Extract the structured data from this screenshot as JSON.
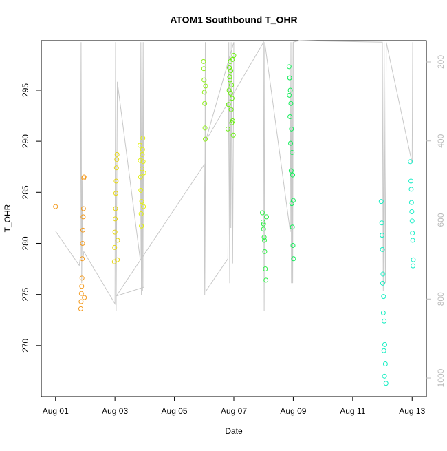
{
  "chart_data": {
    "type": "scatter",
    "title": "ATOM1 Southbound T_OHR",
    "x_label": "Date",
    "y_label": "T_OHR",
    "xlim": [
      0.52,
      13.48
    ],
    "xticks": [
      {
        "value": 1,
        "label": "Aug 01"
      },
      {
        "value": 3,
        "label": "Aug 03"
      },
      {
        "value": 5,
        "label": "Aug 05"
      },
      {
        "value": 7,
        "label": "Aug 07"
      },
      {
        "value": 9,
        "label": "Aug 09"
      },
      {
        "value": 11,
        "label": "Aug 11"
      },
      {
        "value": 13,
        "label": "Aug 13"
      }
    ],
    "ylim": [
      265,
      299.85
    ],
    "yticks": [
      270,
      275,
      280,
      285,
      290,
      295
    ],
    "y2lim": [
      1047,
      146
    ],
    "y2ticks": [
      200,
      400,
      600,
      800,
      1000
    ],
    "series": [
      {
        "color": "#f39a1e",
        "x": [
          1.0,
          1.85,
          1.86,
          1.87,
          1.88,
          1.89,
          1.9,
          1.91,
          1.92,
          1.93,
          1.94,
          1.95,
          1.96,
          1.97
        ],
        "values": [
          283.6,
          273.6,
          274.3,
          275.1,
          275.8,
          276.6,
          278.5,
          280.0,
          281.3,
          282.6,
          283.4,
          286.4,
          286.5,
          274.7
        ]
      },
      {
        "color": "#e6d614",
        "x": [
          2.98,
          2.99,
          3.0,
          3.01,
          3.02,
          3.03,
          3.04,
          3.05,
          3.06,
          3.07,
          3.08,
          3.09
        ],
        "values": [
          278.2,
          279.6,
          281.1,
          282.4,
          283.4,
          284.9,
          286.1,
          287.4,
          288.2,
          288.7,
          278.4,
          280.3
        ]
      },
      {
        "color": "#e4f20a",
        "x": [
          3.84,
          3.85,
          3.86,
          3.87,
          3.88,
          3.89,
          3.9,
          3.91,
          3.92,
          3.93,
          3.94,
          3.95,
          3.96,
          3.97
        ],
        "values": [
          289.6,
          288.1,
          286.5,
          285.2,
          282.9,
          281.7,
          284.1,
          287.3,
          288.7,
          289.2,
          290.3,
          288.0,
          283.6,
          286.9
        ]
      },
      {
        "color": "#8ff01a",
        "x": [
          5.98,
          5.99,
          6.0,
          6.01,
          6.02,
          6.03,
          6.04,
          6.05
        ],
        "values": [
          297.8,
          297.1,
          296.0,
          294.8,
          293.7,
          291.3,
          290.2,
          295.4
        ]
      },
      {
        "color": "#66ef0a",
        "x": [
          6.8,
          6.82,
          6.84,
          6.86,
          6.88,
          6.9,
          6.92,
          6.94,
          6.96,
          6.98,
          7.0,
          6.85,
          6.87,
          6.89,
          6.91,
          6.93,
          6.95
        ],
        "values": [
          291.2,
          293.6,
          295.0,
          296.3,
          297.8,
          296.9,
          295.5,
          294.2,
          292.0,
          290.6,
          298.4,
          297.2,
          296.0,
          294.7,
          293.1,
          291.8,
          298.0
        ]
      },
      {
        "color": "#2ef046",
        "x": [
          7.96,
          7.98,
          8.0,
          8.02,
          8.04,
          8.06,
          8.08,
          8.1,
          8.0,
          8.03
        ],
        "values": [
          283.0,
          282.1,
          281.4,
          280.6,
          279.2,
          277.5,
          276.4,
          282.6,
          281.9,
          280.3
        ]
      },
      {
        "color": "#10ee58",
        "x": [
          8.86,
          8.88,
          8.9,
          8.92,
          8.94,
          8.96,
          8.98,
          9.0,
          8.87,
          8.89,
          8.91,
          8.93,
          8.95,
          8.97,
          8.99,
          9.01
        ],
        "values": [
          297.3,
          296.2,
          295.0,
          293.7,
          291.2,
          288.9,
          286.7,
          284.2,
          294.5,
          292.4,
          289.8,
          287.1,
          283.9,
          281.6,
          279.8,
          278.5
        ]
      },
      {
        "color": "#16eec2",
        "x": [
          11.96,
          11.98,
          12.0,
          12.02,
          12.04,
          12.06,
          12.08,
          12.1,
          12.12,
          11.99,
          12.01,
          12.03,
          12.05,
          12.07
        ],
        "values": [
          284.1,
          282.0,
          279.4,
          277.0,
          274.8,
          272.4,
          270.1,
          268.2,
          266.3,
          280.8,
          276.1,
          273.2,
          269.5,
          267.0
        ]
      },
      {
        "color": "#1ceec8",
        "x": [
          12.94,
          12.96,
          12.98,
          13.0,
          13.02,
          13.04,
          12.97,
          12.99,
          13.01,
          13.03
        ],
        "values": [
          288.0,
          286.1,
          284.0,
          282.2,
          280.3,
          278.4,
          285.3,
          283.1,
          281.0,
          277.8
        ]
      },
      {
        "color": "#c8c8c8",
        "axis": "y2",
        "x": [
          1.0,
          1.8,
          1.84,
          1.86,
          1.88,
          1.9,
          1.92,
          1.95,
          3.0,
          3.02,
          3.04,
          3.08,
          3.85,
          3.87,
          3.89,
          3.91,
          3.93,
          3.95,
          3.97,
          3.05,
          6.0,
          6.02,
          6.04,
          6.06,
          6.8,
          6.83,
          6.86,
          6.88,
          6.9,
          6.93,
          6.96,
          7.0,
          6.05,
          8.0,
          8.02,
          8.04,
          8.9,
          8.92,
          8.94,
          8.96,
          8.98,
          9.0,
          9.2,
          12.0,
          12.03,
          12.06,
          12.1,
          12.13,
          13.0,
          13.02
        ],
        "values": [
          628,
          715,
          690,
          150,
          760,
          500,
          700,
          680,
          812,
          150,
          830,
          250,
          700,
          150,
          790,
          150,
          780,
          150,
          770,
          792,
          460,
          790,
          150,
          780,
          698,
          150,
          760,
          150,
          620,
          150,
          710,
          150,
          400,
          150,
          830,
          150,
          630,
          150,
          760,
          150,
          760,
          150,
          146,
          150,
          780,
          150,
          760,
          150,
          456,
          150
        ]
      }
    ]
  }
}
